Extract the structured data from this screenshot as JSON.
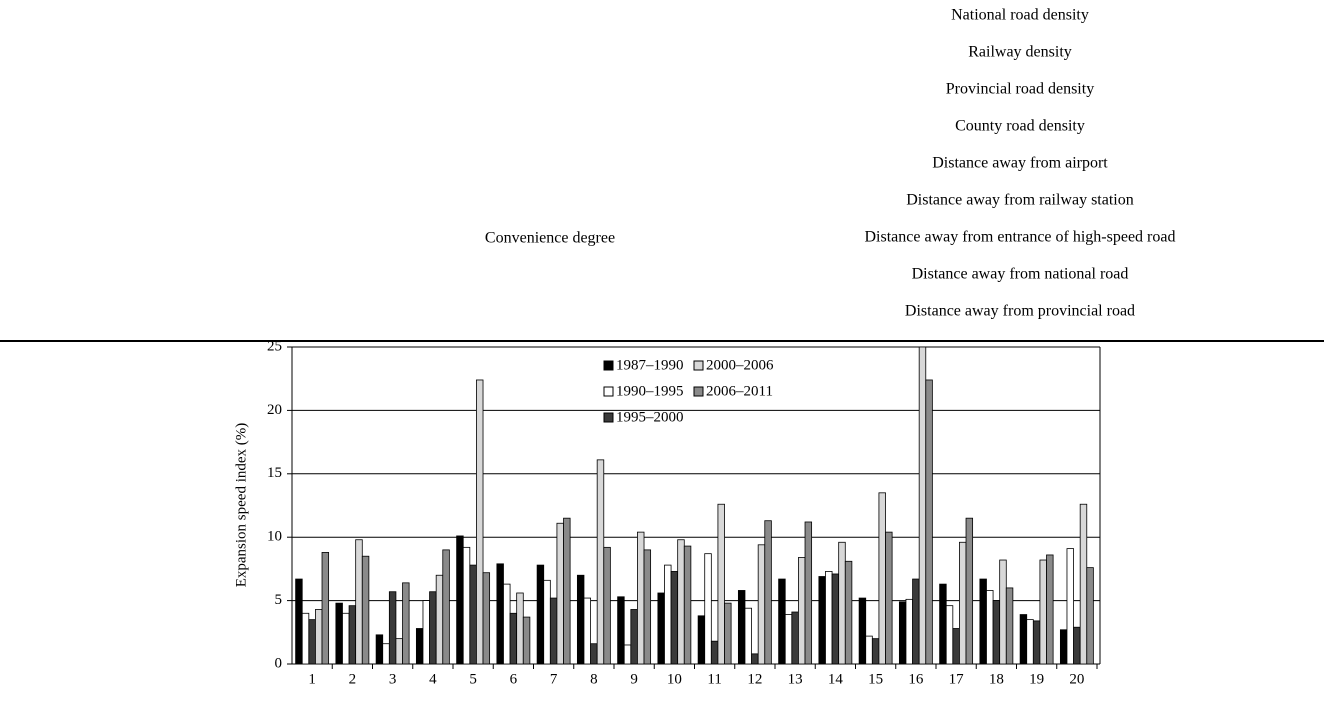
{
  "table": {
    "category": "Convenience degree",
    "factors": [
      "National road density",
      "Railway density",
      "Provincial road density",
      "County road density",
      "Distance away from airport",
      "Distance away from railway station",
      "Distance away from entrance of high-speed road",
      "Distance away from national road",
      "Distance away from provincial road"
    ]
  },
  "chart_data": {
    "type": "bar",
    "y_label": "Expansion speed index (%)",
    "categories": [
      "1",
      "2",
      "3",
      "4",
      "5",
      "6",
      "7",
      "8",
      "9",
      "10",
      "11",
      "12",
      "13",
      "14",
      "15",
      "16",
      "17",
      "18",
      "19",
      "20"
    ],
    "series": [
      {
        "name": "1987–1990",
        "color": "#000000",
        "values": [
          6.7,
          4.8,
          2.3,
          2.8,
          10.1,
          7.9,
          7.8,
          7.0,
          5.3,
          5.6,
          3.8,
          5.8,
          6.7,
          6.9,
          5.2,
          4.9,
          6.3,
          6.7,
          3.9,
          2.7
        ]
      },
      {
        "name": "1990–1995",
        "color": "#ffffff",
        "values": [
          4.0,
          4.0,
          1.6,
          5.0,
          9.2,
          6.3,
          6.6,
          5.2,
          1.5,
          7.8,
          8.7,
          4.4,
          3.9,
          7.3,
          2.2,
          5.1,
          4.6,
          5.8,
          3.5,
          9.1
        ]
      },
      {
        "name": "1995–2000",
        "color": "#3a3a3a",
        "values": [
          3.5,
          4.6,
          5.7,
          5.7,
          7.8,
          4.0,
          5.2,
          1.6,
          4.3,
          7.3,
          1.8,
          0.8,
          4.1,
          7.1,
          2.0,
          6.7,
          2.8,
          5.0,
          3.4,
          2.9
        ]
      },
      {
        "name": "2000–2006",
        "color": "#d8d8d8",
        "values": [
          4.3,
          9.8,
          2.0,
          7.0,
          22.4,
          5.6,
          11.1,
          16.1,
          10.4,
          9.8,
          12.6,
          9.4,
          8.4,
          9.6,
          13.5,
          25,
          9.6,
          8.2,
          8.2,
          12.6
        ]
      },
      {
        "name": "2006–2011",
        "color": "#8a8a8a",
        "values": [
          8.8,
          8.5,
          6.4,
          9.0,
          7.2,
          3.7,
          11.5,
          9.2,
          9.0,
          9.3,
          4.8,
          11.3,
          11.2,
          8.1,
          10.4,
          22.4,
          11.5,
          6.0,
          8.6,
          7.6
        ]
      }
    ],
    "ylim": [
      0,
      25
    ],
    "yticks": [
      0,
      5,
      10,
      15,
      20,
      25
    ],
    "grid": true
  }
}
